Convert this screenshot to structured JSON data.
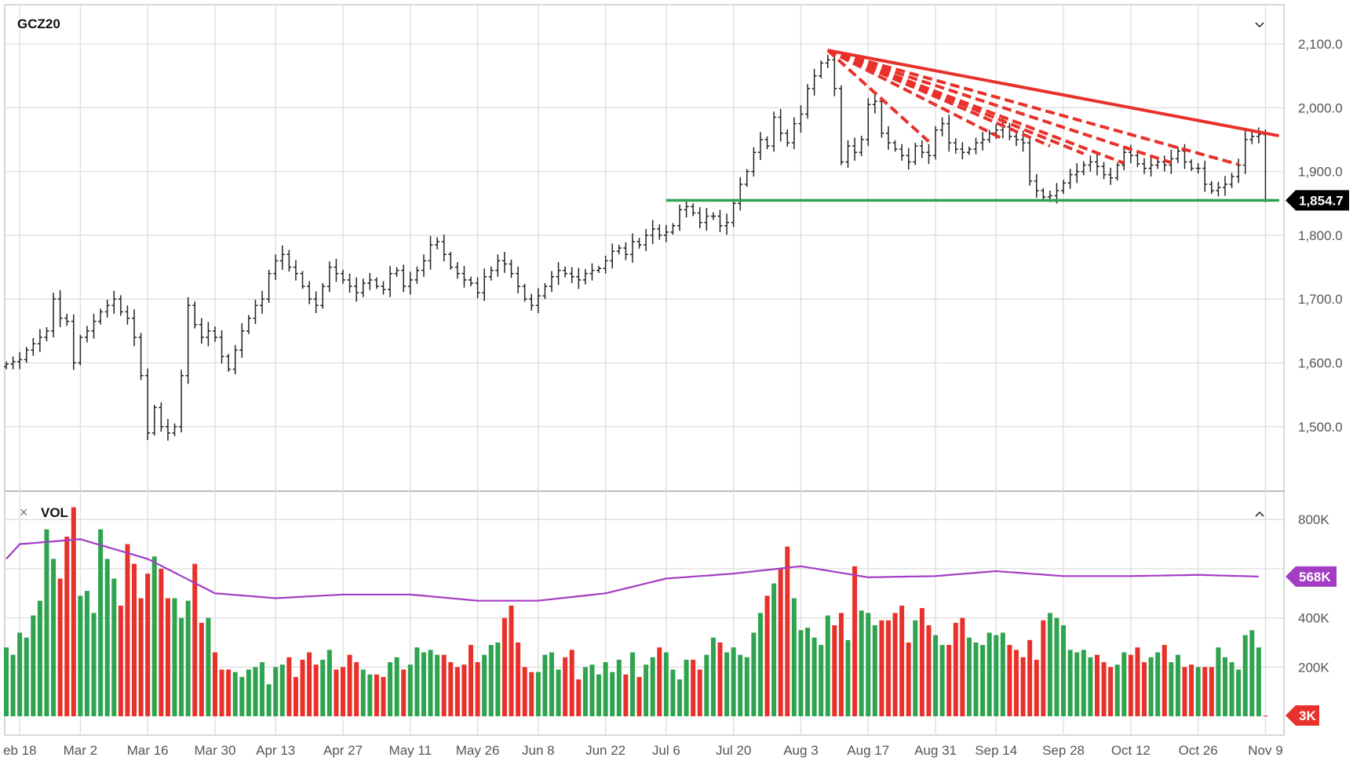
{
  "chart_data": {
    "type": "ohlc-bar",
    "title": "GCZ20",
    "price_axis": {
      "ylim": [
        1420,
        2140
      ],
      "ticks": [
        2100,
        2000,
        1900,
        1800,
        1700,
        1600,
        1500
      ],
      "tick_labels": [
        "2,100.0",
        "2,000.0",
        "1,900.0",
        "1,800.0",
        "1,700.0",
        "1,600.0",
        "1,500.0"
      ]
    },
    "last_price": {
      "value": 1854.7,
      "label": "1,854.7",
      "color": "#000000"
    },
    "grid": true,
    "periods": [
      {
        "label": "",
        "closes": [
          1598,
          1602
        ],
        "volumes": [
          280,
          250
        ]
      },
      {
        "label": "eb 18",
        "closes": [
          1605,
          1620,
          1630,
          1640,
          1650,
          1700,
          1670,
          1665,
          1600
        ],
        "volumes": [
          340,
          320,
          410,
          470,
          760,
          640,
          560,
          730,
          850
        ]
      },
      {
        "label": "Mar 2",
        "closes": [
          1640,
          1650,
          1665,
          1680,
          1690,
          1700,
          1680,
          1670,
          1640,
          1580
        ],
        "volumes": [
          490,
          510,
          420,
          760,
          640,
          560,
          450,
          700,
          620,
          480
        ]
      },
      {
        "label": "Mar 16",
        "closes": [
          1490,
          1530,
          1500,
          1490,
          1500,
          1580,
          1690,
          1660,
          1640,
          1650
        ],
        "volumes": [
          580,
          650,
          600,
          480,
          480,
          400,
          470,
          620,
          380,
          400
        ]
      },
      {
        "label": "Mar 30",
        "closes": [
          1640,
          1610,
          1590,
          1620,
          1650,
          1670,
          1690,
          1700,
          1740
        ],
        "volumes": [
          260,
          190,
          190,
          180,
          160,
          190,
          200,
          220,
          130
        ]
      },
      {
        "label": "Apr 13",
        "closes": [
          1760,
          1770,
          1750,
          1740,
          1720,
          1700,
          1690,
          1720,
          1750,
          1740
        ],
        "volumes": [
          200,
          210,
          240,
          160,
          230,
          260,
          210,
          230,
          270,
          190
        ]
      },
      {
        "label": "Apr 27",
        "closes": [
          1730,
          1720,
          1710,
          1725,
          1730,
          1720,
          1715,
          1740,
          1745,
          1720
        ],
        "volumes": [
          200,
          250,
          220,
          190,
          170,
          170,
          160,
          220,
          240,
          190
        ]
      },
      {
        "label": "May 11",
        "closes": [
          1730,
          1745,
          1760,
          1785,
          1790,
          1770,
          1750,
          1740,
          1730,
          1725
        ],
        "volumes": [
          210,
          280,
          260,
          270,
          250,
          250,
          220,
          200,
          210,
          290
        ]
      },
      {
        "label": "May 26",
        "closes": [
          1710,
          1735,
          1745,
          1760,
          1755,
          1740,
          1720,
          1700,
          1690
        ],
        "volumes": [
          220,
          250,
          290,
          300,
          400,
          450,
          300,
          200,
          180
        ]
      },
      {
        "label": "Jun 8",
        "closes": [
          1705,
          1720,
          1735,
          1745,
          1740,
          1735,
          1730,
          1740,
          1745,
          1748
        ],
        "volumes": [
          180,
          250,
          260,
          190,
          240,
          270,
          150,
          200,
          210,
          170
        ]
      },
      {
        "label": "Jun 22",
        "closes": [
          1760,
          1775,
          1780,
          1770,
          1790,
          1785,
          1800,
          1810,
          1800
        ],
        "volumes": [
          220,
          180,
          230,
          170,
          260,
          160,
          210,
          240,
          280
        ]
      },
      {
        "label": "Jul 6",
        "closes": [
          1805,
          1815,
          1840,
          1845,
          1835,
          1820,
          1830,
          1830,
          1815,
          1820
        ],
        "volumes": [
          260,
          190,
          150,
          230,
          230,
          190,
          250,
          320,
          300,
          260
        ]
      },
      {
        "label": "Jul 20",
        "closes": [
          1850,
          1880,
          1900,
          1930,
          1950,
          1940,
          1985,
          1960,
          1945,
          1975
        ],
        "volumes": [
          280,
          250,
          240,
          340,
          420,
          490,
          540,
          600,
          690,
          480
        ]
      },
      {
        "label": "Aug 3",
        "closes": [
          1990,
          2030,
          2050,
          2070,
          2075,
          2030,
          1915,
          1940,
          1930,
          1950
        ],
        "volumes": [
          350,
          360,
          320,
          290,
          410,
          370,
          420,
          310,
          610,
          430
        ]
      },
      {
        "label": "Aug 17",
        "closes": [
          2005,
          2010,
          1960,
          1945,
          1935,
          1925,
          1915,
          1940,
          1930,
          1925
        ],
        "volumes": [
          420,
          370,
          390,
          390,
          420,
          450,
          300,
          390,
          440,
          370
        ]
      },
      {
        "label": "Aug 31",
        "closes": [
          1965,
          1975,
          1945,
          1935,
          1930,
          1935,
          1945,
          1950,
          1960
        ],
        "volumes": [
          330,
          290,
          290,
          380,
          400,
          320,
          300,
          290,
          340
        ]
      },
      {
        "label": "Sep 14",
        "closes": [
          1965,
          1970,
          1955,
          1950,
          1945,
          1885,
          1870,
          1860,
          1862,
          1870
        ],
        "volumes": [
          330,
          340,
          290,
          270,
          240,
          310,
          230,
          390,
          420,
          400
        ]
      },
      {
        "label": "Sep 28",
        "closes": [
          1882,
          1895,
          1900,
          1910,
          1915,
          1908,
          1895,
          1890,
          1910,
          1930
        ],
        "volumes": [
          370,
          270,
          260,
          270,
          240,
          250,
          220,
          200,
          210,
          260
        ]
      },
      {
        "label": "Oct 12",
        "closes": [
          1925,
          1912,
          1905,
          1910,
          1915,
          1910,
          1920,
          1932,
          1915,
          1905
        ],
        "volumes": [
          250,
          280,
          220,
          240,
          260,
          290,
          220,
          250,
          200,
          210
        ]
      },
      {
        "label": "Oct 26",
        "closes": [
          1905,
          1880,
          1870,
          1875,
          1880,
          1892,
          1910,
          1950,
          1955,
          1958
        ],
        "volumes": [
          200,
          200,
          200,
          280,
          240,
          220,
          190,
          330,
          350,
          280
        ]
      },
      {
        "label": "Nov 9",
        "closes": [
          1854.7
        ],
        "volumes": [
          3
        ]
      }
    ],
    "volume_panel": {
      "label": "VOL",
      "ylim": [
        0,
        900
      ],
      "ticks": [
        800,
        400,
        200
      ],
      "tick_labels": [
        "800K",
        "400K",
        "200K"
      ],
      "up_color": "#2ea44f",
      "down_color": "#e8312a",
      "last_volume_label": "3K",
      "average_line": {
        "color": "#a43cc4",
        "label": "568K",
        "period_values": [
          640,
          700,
          720,
          640,
          500,
          480,
          495,
          495,
          470,
          470,
          500,
          560,
          580,
          610,
          565,
          570,
          590,
          570,
          570,
          575
        ],
        "last_value": 568
      }
    },
    "annotations": {
      "support_line": {
        "price": 1854.7,
        "from_bar": 98,
        "color": "#2ea44f"
      },
      "trendline_color": "#e8312a",
      "trendline_solid": {
        "from": {
          "bar": 122,
          "price": 2090
        },
        "to": {
          "bar": 189,
          "price": 1956
        }
      },
      "trendlines_dashed": [
        {
          "from": {
            "bar": 122,
            "price": 2090
          },
          "to": {
            "bar": 137,
            "price": 1947
          }
        },
        {
          "from": {
            "bar": 122,
            "price": 2090
          },
          "to": {
            "bar": 148,
            "price": 1951
          }
        },
        {
          "from": {
            "bar": 122,
            "price": 2090
          },
          "to": {
            "bar": 155,
            "price": 1940
          }
        },
        {
          "from": {
            "bar": 122,
            "price": 2090
          },
          "to": {
            "bar": 160,
            "price": 1928
          }
        },
        {
          "from": {
            "bar": 122,
            "price": 2090
          },
          "to": {
            "bar": 166,
            "price": 1913
          }
        },
        {
          "from": {
            "bar": 122,
            "price": 2090
          },
          "to": {
            "bar": 173,
            "price": 1914
          }
        },
        {
          "from": {
            "bar": 122,
            "price": 2090
          },
          "to": {
            "bar": 183,
            "price": 1911
          }
        }
      ]
    }
  },
  "controls": {
    "close_symbol": "×",
    "collapse_icon": "chevron-down",
    "expand_icon": "chevron-up"
  }
}
